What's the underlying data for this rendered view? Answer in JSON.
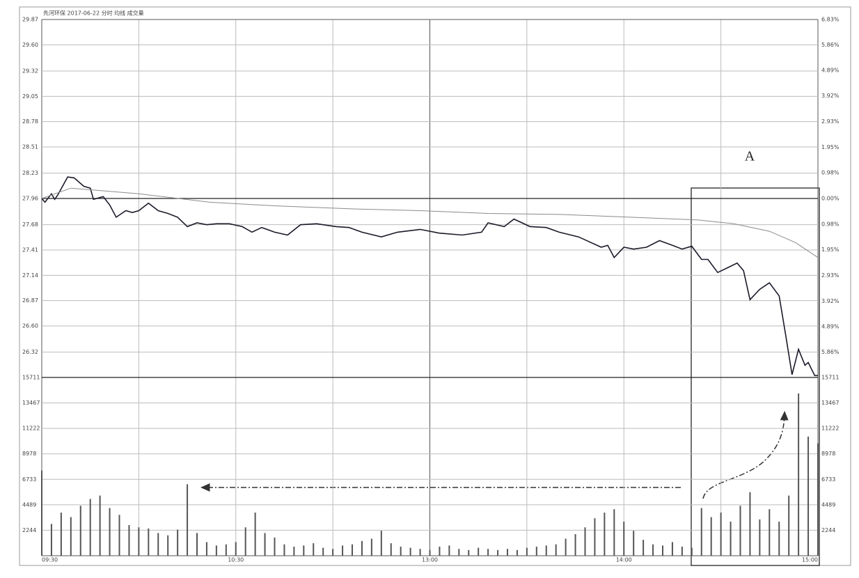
{
  "chart_data": [
    {
      "type": "line",
      "title": "先河环保 2017-06-22 分时 均线 成交量",
      "annotation": "A",
      "xlim": [
        0,
        240
      ],
      "ylim": [
        26.05,
        29.87
      ],
      "yticks": [
        29.87,
        {
          "value": 29.6,
          "label": "29.60"
        },
        29.32,
        29.05,
        28.78,
        28.51,
        28.23,
        27.96,
        27.68,
        27.41,
        27.14,
        26.87,
        {
          "value": 26.6,
          "label": "26.60"
        },
        26.32
      ],
      "y2lim": [
        -6.83,
        6.83
      ],
      "y2ticks": [
        {
          "value": 6.83,
          "label": "6.83%"
        },
        {
          "value": 5.86,
          "label": "5.86%"
        },
        {
          "value": 4.89,
          "label": "4.89%"
        },
        {
          "value": 3.92,
          "label": "3.92%"
        },
        {
          "value": 2.93,
          "label": "2.93%"
        },
        {
          "value": 1.95,
          "label": "1.95%"
        },
        {
          "value": 0.98,
          "label": "0.98%"
        },
        {
          "value": 0,
          "label": "0.00%"
        },
        {
          "value": -0.98,
          "label": "0.98%"
        },
        {
          "value": -1.95,
          "label": "1.95%"
        },
        {
          "value": -2.93,
          "label": "2.93%"
        },
        {
          "value": -3.92,
          "label": "3.92%"
        },
        {
          "value": -4.89,
          "label": "4.89%"
        },
        {
          "value": -5.86,
          "label": "5.86%"
        }
      ],
      "series": [
        {
          "color": "#1a1a2a",
          "x": [
            0,
            1,
            3,
            4,
            5,
            8,
            10,
            13,
            15,
            16,
            19,
            21,
            23,
            26,
            28,
            30,
            33,
            36,
            39,
            42,
            45,
            48,
            51,
            54,
            58,
            62,
            65,
            68,
            72,
            76,
            80,
            85,
            91,
            95,
            99,
            105,
            110,
            117,
            123,
            130,
            136,
            138,
            143,
            146,
            151,
            156,
            160,
            166,
            173,
            175,
            177,
            180,
            183,
            187,
            191,
            195,
            198,
            201,
            204,
            206,
            209,
            212,
            215,
            217,
            219,
            222,
            225,
            228,
            230,
            232,
            234,
            236,
            237,
            239,
            240
          ],
          "values": [
            27.96,
            27.92,
            28.01,
            27.95,
            28.0,
            28.19,
            28.18,
            28.09,
            28.07,
            27.95,
            27.98,
            27.89,
            27.76,
            27.83,
            27.81,
            27.83,
            27.91,
            27.83,
            27.8,
            27.76,
            27.66,
            27.7,
            27.68,
            27.69,
            27.69,
            27.66,
            27.6,
            27.65,
            27.6,
            27.57,
            27.68,
            27.69,
            27.66,
            27.65,
            27.6,
            27.55,
            27.6,
            27.63,
            27.59,
            27.57,
            27.6,
            27.7,
            27.66,
            27.74,
            27.66,
            27.65,
            27.6,
            27.55,
            27.44,
            27.46,
            27.33,
            27.44,
            27.42,
            27.44,
            27.51,
            27.46,
            27.42,
            27.45,
            27.31,
            27.31,
            27.17,
            27.22,
            27.27,
            27.19,
            26.88,
            26.99,
            27.06,
            26.92,
            26.51,
            26.08,
            26.35,
            26.18,
            26.21,
            26.07,
            26.07
          ]
        },
        {
          "color": "#8a8a8a",
          "x": [
            0,
            9,
            30,
            52,
            73,
            95,
            117,
            138,
            160,
            182,
            203,
            214,
            225,
            233,
            240
          ],
          "values": [
            27.96,
            28.07,
            28.01,
            27.92,
            27.88,
            27.85,
            27.83,
            27.8,
            27.79,
            27.76,
            27.73,
            27.69,
            27.61,
            27.49,
            27.33
          ]
        }
      ]
    },
    {
      "type": "bar",
      "color": "#555",
      "xlim": [
        0,
        240
      ],
      "xticks": [
        {
          "value": 0,
          "label": "09:30"
        },
        {
          "value": 60,
          "label": "10:30"
        },
        {
          "value": 120,
          "label": "13:00"
        },
        {
          "value": 180,
          "label": "14:00"
        },
        {
          "value": 240,
          "label": "15:00"
        }
      ],
      "ylim": [
        0,
        15711
      ],
      "yticks": [
        15711,
        13467,
        11222,
        8978,
        6733,
        4489,
        2244
      ],
      "x": [
        0,
        3,
        6,
        9,
        12,
        15,
        18,
        21,
        24,
        27,
        30,
        33,
        36,
        39,
        42,
        45,
        48,
        51,
        54,
        57,
        60,
        63,
        66,
        69,
        72,
        75,
        78,
        81,
        84,
        87,
        90,
        93,
        96,
        99,
        102,
        105,
        108,
        111,
        114,
        117,
        120,
        123,
        126,
        129,
        132,
        135,
        138,
        141,
        144,
        147,
        150,
        153,
        156,
        159,
        162,
        165,
        168,
        171,
        174,
        177,
        180,
        183,
        186,
        189,
        192,
        195,
        198,
        201,
        204,
        207,
        210,
        213,
        216,
        219,
        222,
        225,
        228,
        231,
        234,
        237,
        240
      ],
      "values": [
        7500,
        2800,
        3800,
        3400,
        4400,
        5000,
        5300,
        4200,
        3600,
        2700,
        2500,
        2400,
        2000,
        1800,
        2300,
        6300,
        2000,
        1200,
        900,
        1000,
        1200,
        2500,
        3800,
        2000,
        1600,
        1000,
        800,
        900,
        1100,
        700,
        600,
        900,
        1000,
        1300,
        1500,
        2200,
        1100,
        800,
        700,
        600,
        500,
        800,
        900,
        600,
        500,
        700,
        600,
        500,
        600,
        500,
        700,
        800,
        900,
        1000,
        1500,
        1900,
        2500,
        3300,
        3800,
        4100,
        3000,
        2200,
        1400,
        1000,
        900,
        1200,
        800,
        700,
        4200,
        3400,
        3800,
        3000,
        4400,
        5600,
        3200,
        4100,
        3000,
        5300,
        14300,
        10500,
        9900
      ]
    }
  ]
}
